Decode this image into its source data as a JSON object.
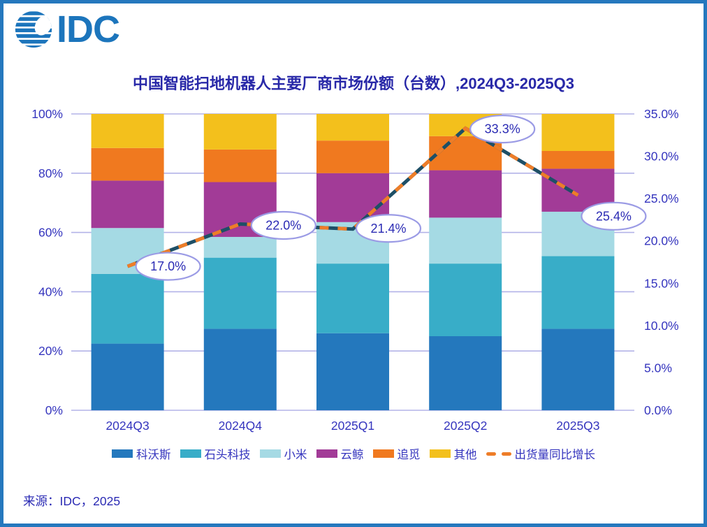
{
  "logo": {
    "text": "IDC"
  },
  "source": "来源：IDC，2025",
  "colors": {
    "frame": "#2578BE",
    "logo_blue": "#1C75BC",
    "title_text": "#2828A8",
    "axis_text": "#3535BE",
    "gridline": "#B3B3E8",
    "line_base": "#1E4F66",
    "line_dash": "#EE7D28",
    "label_ellipse_border": "#9B9BE5",
    "label_text": "#2B2BB4"
  },
  "chart_data": {
    "type": "bar",
    "stacked": true,
    "title": "中国智能扫地机器人主要厂商市场份额（台数）,2024Q3-2025Q3",
    "categories": [
      "2024Q3",
      "2024Q4",
      "2025Q1",
      "2025Q2",
      "2025Q3"
    ],
    "series": [
      {
        "name": "科沃斯",
        "color": "#2478BD",
        "values": [
          22.5,
          27.5,
          26.0,
          25.0,
          27.5
        ]
      },
      {
        "name": "石头科技",
        "color": "#38ADC8",
        "values": [
          23.5,
          24.0,
          23.5,
          24.5,
          24.5
        ]
      },
      {
        "name": "小米",
        "color": "#A5DAE4",
        "values": [
          15.5,
          7.0,
          14.0,
          15.5,
          15.0
        ]
      },
      {
        "name": "云鲸",
        "color": "#A23B97",
        "values": [
          16.0,
          18.5,
          16.5,
          16.0,
          14.5
        ]
      },
      {
        "name": "追觅",
        "color": "#F0791F",
        "values": [
          11.0,
          11.0,
          11.0,
          11.5,
          6.0
        ]
      },
      {
        "name": "其他",
        "color": "#F3C01C",
        "values": [
          11.5,
          12.0,
          9.0,
          7.5,
          12.5
        ]
      }
    ],
    "line_series": {
      "name": "出货量同比增长",
      "axis": "right",
      "values": [
        17.0,
        22.0,
        21.4,
        33.3,
        25.4
      ],
      "labels": [
        "17.0%",
        "22.0%",
        "21.4%",
        "33.3%",
        "25.4%"
      ]
    },
    "left_axis": {
      "ticks": [
        "0%",
        "20%",
        "40%",
        "60%",
        "80%",
        "100%"
      ],
      "range": [
        0,
        100
      ]
    },
    "right_axis": {
      "ticks": [
        "0.0%",
        "5.0%",
        "10.0%",
        "15.0%",
        "20.0%",
        "25.0%",
        "30.0%",
        "35.0%"
      ],
      "range": [
        0,
        35
      ]
    },
    "grid": true,
    "legend_position": "bottom"
  },
  "legend": {
    "items": [
      {
        "label": "科沃斯",
        "color": "#2478BD",
        "type": "swatch"
      },
      {
        "label": "石头科技",
        "color": "#38ADC8",
        "type": "swatch"
      },
      {
        "label": "小米",
        "color": "#A5DAE4",
        "type": "swatch"
      },
      {
        "label": "云鲸",
        "color": "#A23B97",
        "type": "swatch"
      },
      {
        "label": "追觅",
        "color": "#F0791F",
        "type": "swatch"
      },
      {
        "label": "其他",
        "color": "#F3C01C",
        "type": "swatch"
      },
      {
        "label": "出货量同比增长",
        "color": "#EE7D28",
        "type": "dash"
      }
    ]
  }
}
